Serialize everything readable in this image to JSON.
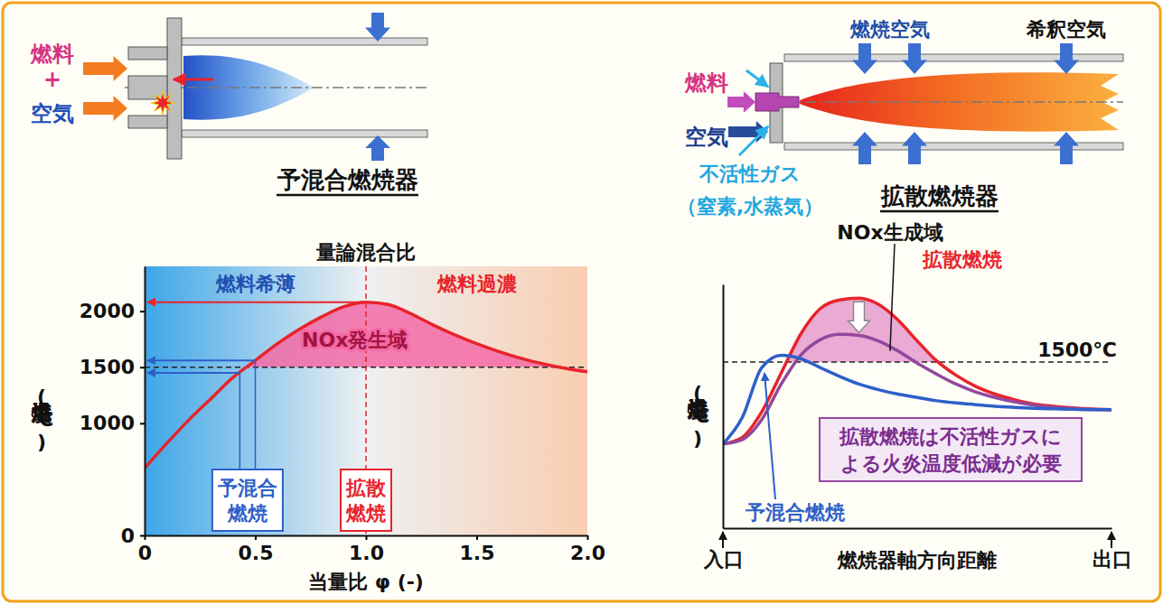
{
  "premix_burner": {
    "title": "予混合燃焼器",
    "fuel": "燃料",
    "plus": "+",
    "air": "空気"
  },
  "diffusion_burner": {
    "title": "拡散燃焼器",
    "fuel": "燃料",
    "air": "空気",
    "inert_gas": "不活性ガス",
    "inert_gas_examples": "（窒素,水蒸気）",
    "combustion_air": "燃焼空気",
    "dilution_air": "希釈空気"
  },
  "chart_data": [
    {
      "type": "line",
      "title": "量論混合比",
      "x_label": "当量比 φ (-)",
      "y_label": "燃焼温度(℃)",
      "x": [
        0,
        0.1,
        0.2,
        0.3,
        0.4,
        0.5,
        0.6,
        0.7,
        0.8,
        0.9,
        1.0,
        1.1,
        1.2,
        1.3,
        1.4,
        1.5,
        1.6,
        1.7,
        1.8,
        1.9,
        2.0
      ],
      "series": [
        {
          "color": "#e8232b",
          "values": [
            600,
            820,
            1030,
            1220,
            1410,
            1560,
            1710,
            1840,
            1950,
            2040,
            2080,
            2060,
            1980,
            1880,
            1790,
            1710,
            1640,
            1580,
            1530,
            1490,
            1460
          ]
        }
      ],
      "xlim": [
        0,
        2
      ],
      "xticks": [
        0,
        0.5,
        {
          "value": 1,
          "label": "1.0"
        },
        1.5,
        {
          "value": 2,
          "label": "2.0"
        }
      ],
      "ylim": [
        0,
        2400
      ],
      "yticks": [
        0,
        1000,
        1500,
        2000
      ],
      "regions": [
        {
          "label": "燃料希薄",
          "x": [
            0,
            1
          ],
          "color": "#3ea6e8"
        },
        {
          "label": "燃料過濃",
          "x": [
            1,
            2
          ],
          "color": "#f9cdb0"
        }
      ],
      "stoichiometric_line": {
        "value": 1
      },
      "threshold": {
        "value": 1500
      },
      "fill_label": "NOx発生域",
      "annotations": [
        {
          "text": "予混合燃焼",
          "x": [
            0.43,
            0.5
          ],
          "y": [
            1450,
            1560
          ],
          "color": "#2e5fc9"
        },
        {
          "text": "拡散燃焼",
          "x": [
            1.0
          ],
          "y": [
            2080
          ],
          "color": "#e8232b"
        }
      ]
    },
    {
      "type": "line",
      "x_label": "燃焼器軸方向距離",
      "y_label": "燃焼温度(℃)",
      "x": [
        0,
        0.5,
        1,
        1.5,
        2,
        2.5,
        3,
        3.5,
        4,
        4.5,
        5,
        5.5,
        6,
        6.5,
        7,
        7.5,
        8,
        8.5,
        9,
        9.5,
        10
      ],
      "series": [
        {
          "name": "拡散燃焼",
          "color": "#e8232b",
          "values": [
            760,
            820,
            1050,
            1400,
            1750,
            1980,
            2060,
            2075,
            2020,
            1880,
            1690,
            1510,
            1380,
            1280,
            1210,
            1160,
            1120,
            1100,
            1085,
            1075,
            1070
          ]
        },
        {
          "color": "#93479e",
          "values": [
            760,
            800,
            980,
            1300,
            1560,
            1700,
            1750,
            1740,
            1690,
            1600,
            1490,
            1390,
            1300,
            1230,
            1180,
            1140,
            1110,
            1090,
            1080,
            1072,
            1070
          ]
        },
        {
          "name": "予混合燃焼",
          "color": "#2e5fc9",
          "values": [
            760,
            1000,
            1450,
            1560,
            1530,
            1450,
            1370,
            1300,
            1250,
            1210,
            1180,
            1150,
            1130,
            1115,
            1100,
            1090,
            1082,
            1077,
            1073,
            1070,
            1070
          ]
        }
      ],
      "xlim": [
        0,
        10
      ],
      "xticks": [
        {
          "value": 0,
          "label": "入口"
        },
        {
          "value": 10,
          "label": "出口"
        }
      ],
      "ylim": [
        0,
        2200
      ],
      "yticks": [],
      "tick_labels": "x",
      "threshold": {
        "value": 1500,
        "label": "1500℃"
      },
      "fill_label": "NOx生成域",
      "annotations": [
        {
          "text": "拡散燃焼は不活性ガスによる火炎温度低減が必要",
          "color": "#93479e"
        }
      ]
    }
  ]
}
